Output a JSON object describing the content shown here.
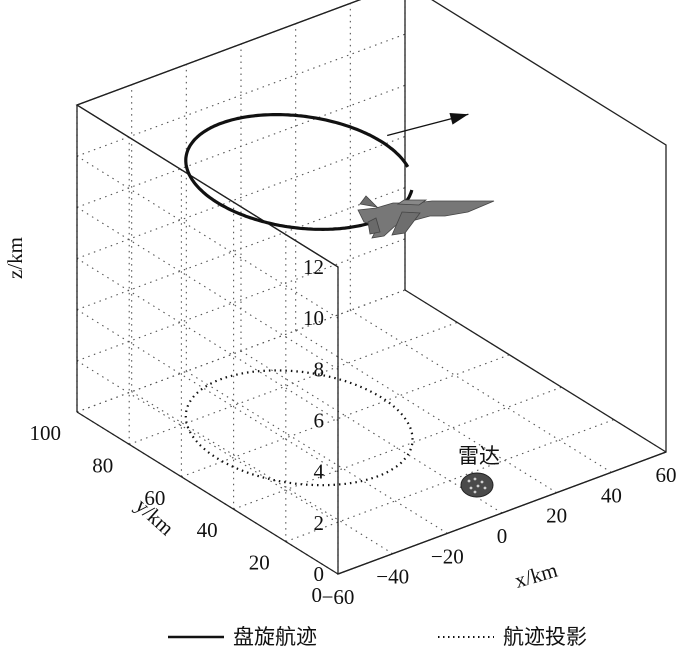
{
  "chart_data": {
    "type": "line",
    "axes": {
      "x": {
        "label": "x/km",
        "ticks": [
          -60,
          -40,
          -20,
          0,
          20,
          40,
          60
        ],
        "range": [
          -60,
          60
        ]
      },
      "y": {
        "label": "y/km",
        "ticks": [
          0,
          20,
          40,
          60,
          80,
          100
        ],
        "range": [
          0,
          100
        ]
      },
      "z": {
        "label": "z/km",
        "ticks": [
          0,
          2,
          4,
          6,
          8,
          10,
          12
        ],
        "range": [
          0,
          12
        ]
      }
    },
    "grid": true,
    "legend_position": "bottom",
    "series": [
      {
        "name": "盘旋航迹",
        "style": "solid",
        "color": "#111111",
        "circle_center": {
          "x": -15,
          "y": 62,
          "z": 10
        },
        "circle_radius_km": 30,
        "exit_heading_point": {
          "x": 45,
          "y": 60,
          "z": 10
        }
      },
      {
        "name": "航迹投影",
        "style": "dotted",
        "color": "#111111",
        "circle_center": {
          "x": -15,
          "y": 62,
          "z": 0
        },
        "circle_radius_km": 30
      }
    ],
    "annotations": [
      {
        "text": "雷达",
        "x": 0,
        "y": 0,
        "z": 0
      }
    ]
  }
}
